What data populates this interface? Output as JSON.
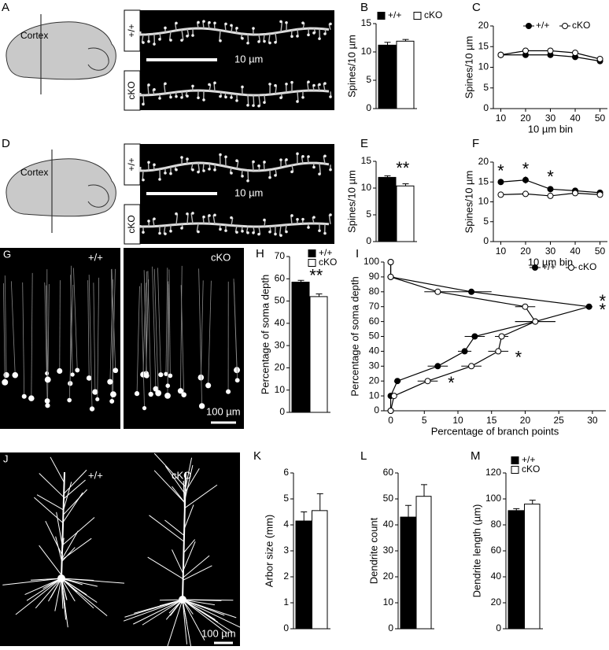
{
  "panels": [
    {
      "label": "A",
      "cortex": "Cortex",
      "top": "+/+",
      "bottom": "cKO",
      "scale": "10 µm"
    },
    {
      "label": "D",
      "cortex": "Cortex",
      "top": "+/+",
      "bottom": "cKO",
      "scale": "10 µm"
    },
    {
      "label": "G",
      "left": "+/+",
      "right": "cKO",
      "scale": "100 µm"
    },
    {
      "label": "J",
      "left": "+/+",
      "right": "cKO",
      "scale": "100 µm"
    }
  ],
  "chart_data": [
    {
      "label": "B",
      "type": "bar",
      "ylabel": "Spines/10 µm",
      "ylim": [
        0,
        15
      ],
      "yticks": [
        0,
        5,
        10,
        15
      ],
      "legend": "top",
      "series": [
        {
          "name": "+/+",
          "color": "#000000",
          "values": [
            11.2
          ],
          "errors": [
            0.5
          ]
        },
        {
          "name": "cKO",
          "color": "#ffffff",
          "values": [
            11.9
          ],
          "errors": [
            0.3
          ]
        }
      ]
    },
    {
      "label": "C",
      "type": "line",
      "xlabel": "10 µm bin",
      "ylabel": "Spines/10 µm",
      "x": [
        10,
        20,
        30,
        40,
        50
      ],
      "xlim": [
        7,
        53
      ],
      "xticks": [
        10,
        20,
        30,
        40,
        50
      ],
      "ylim": [
        0,
        20
      ],
      "yticks": [
        0,
        5,
        10,
        15,
        20
      ],
      "legend": "top",
      "series": [
        {
          "name": "+/+",
          "color": "#000000",
          "values": [
            13,
            13,
            13,
            12.5,
            11.5
          ],
          "errors": [
            0.8,
            0.6,
            0.5,
            0.5,
            0.5
          ]
        },
        {
          "name": "cKO",
          "color": "#ffffff",
          "values": [
            13,
            14,
            14,
            13.5,
            12
          ],
          "errors": [
            0.5,
            0.5,
            0.5,
            0.5,
            0.5
          ]
        }
      ]
    },
    {
      "label": "E",
      "type": "bar",
      "ylabel": "Spines/10 µm",
      "ylim": [
        0,
        15
      ],
      "yticks": [
        0,
        5,
        10,
        15
      ],
      "annotations": [
        {
          "text": "**",
          "y": 13.5
        }
      ],
      "series": [
        {
          "name": "+/+",
          "color": "#000000",
          "values": [
            12
          ],
          "errors": [
            0.3
          ]
        },
        {
          "name": "cKO",
          "color": "#ffffff",
          "values": [
            10.4
          ],
          "errors": [
            0.4
          ]
        }
      ]
    },
    {
      "label": "F",
      "type": "line",
      "xlabel": "10 µm bin",
      "ylabel": "Spines/10 µm",
      "x": [
        10,
        20,
        30,
        40,
        50
      ],
      "xlim": [
        7,
        53
      ],
      "xticks": [
        10,
        20,
        30,
        40,
        50
      ],
      "ylim": [
        0,
        20
      ],
      "yticks": [
        0,
        5,
        10,
        15,
        20
      ],
      "annotations": [
        {
          "text": "*",
          "x": 10,
          "y": 17.5
        },
        {
          "text": "*",
          "x": 20,
          "y": 18
        },
        {
          "text": "*",
          "x": 30,
          "y": 16
        }
      ],
      "series": [
        {
          "name": "+/+",
          "color": "#000000",
          "values": [
            15,
            15.5,
            13.2,
            12.8,
            12.3
          ],
          "errors": [
            0.7,
            0.9,
            0.4,
            0.4,
            0.4
          ]
        },
        {
          "name": "cKO",
          "color": "#ffffff",
          "values": [
            11.8,
            12,
            11.5,
            12.2,
            11.8
          ],
          "errors": [
            0.3,
            0.3,
            0.3,
            0.3,
            0.3
          ]
        }
      ]
    },
    {
      "label": "H",
      "type": "bar",
      "ylabel": "Percentage of soma depth",
      "ylim": [
        0,
        70
      ],
      "yticks": [
        0,
        10,
        20,
        30,
        40,
        50,
        60,
        70
      ],
      "legend": "right",
      "annotations": [
        {
          "text": "**",
          "y": 61
        }
      ],
      "series": [
        {
          "name": "+/+",
          "color": "#000000",
          "values": [
            58.5
          ],
          "errors": [
            0.8
          ]
        },
        {
          "name": "cKO",
          "color": "#ffffff",
          "values": [
            52
          ],
          "errors": [
            1.2
          ]
        }
      ]
    },
    {
      "label": "I",
      "type": "line",
      "orientation": "horizontal",
      "xlabel": "Percentage of branch points",
      "ylabel": "Percentage of soma depth",
      "y": [
        0,
        10,
        20,
        30,
        40,
        50,
        60,
        70,
        80,
        90,
        100
      ],
      "xlim": [
        -1,
        32
      ],
      "xticks": [
        0,
        5,
        10,
        15,
        20,
        25,
        30
      ],
      "ylim": [
        0,
        100
      ],
      "yticks": [
        0,
        10,
        20,
        30,
        40,
        50,
        60,
        70,
        80,
        90,
        100
      ],
      "legend": "top",
      "annotations": [
        {
          "text": "*",
          "x": 31.5,
          "y": 73
        },
        {
          "text": "*",
          "x": 31.5,
          "y": 67
        },
        {
          "text": "*",
          "x": 19,
          "y": 35
        },
        {
          "text": "*",
          "x": 9,
          "y": 18
        }
      ],
      "series": [
        {
          "name": "+/+",
          "color": "#000000",
          "values": [
            0,
            0,
            1,
            7,
            11,
            12.5,
            21.5,
            29.5,
            12,
            0,
            0
          ],
          "errors": [
            0,
            0.3,
            0.5,
            1.5,
            1,
            1.5,
            3,
            0.5,
            3,
            0.5,
            0
          ]
        },
        {
          "name": "cKO",
          "color": "#ffffff",
          "values": [
            0,
            0.5,
            5.5,
            12,
            16,
            16.5,
            21.5,
            20,
            7,
            0,
            0
          ],
          "errors": [
            0,
            0.3,
            1.5,
            1.5,
            1.5,
            1,
            3,
            1.5,
            2,
            0,
            0
          ]
        }
      ]
    },
    {
      "label": "K",
      "type": "bar",
      "ylabel": "Arbor size (mm)",
      "ylim": [
        0,
        6
      ],
      "yticks": [
        0,
        1,
        2,
        3,
        4,
        5,
        6
      ],
      "series": [
        {
          "name": "+/+",
          "color": "#000000",
          "values": [
            4.15
          ],
          "errors": [
            0.35
          ]
        },
        {
          "name": "cKO",
          "color": "#ffffff",
          "values": [
            4.55
          ],
          "errors": [
            0.65
          ]
        }
      ]
    },
    {
      "label": "L",
      "type": "bar",
      "ylabel": "Dendrite count",
      "ylim": [
        0,
        60
      ],
      "yticks": [
        0,
        10,
        20,
        30,
        40,
        50,
        60
      ],
      "series": [
        {
          "name": "+/+",
          "color": "#000000",
          "values": [
            43
          ],
          "errors": [
            4.5
          ]
        },
        {
          "name": "cKO",
          "color": "#ffffff",
          "values": [
            51
          ],
          "errors": [
            4.5
          ]
        }
      ]
    },
    {
      "label": "M",
      "type": "bar",
      "ylabel": "Dendrite length (µm)",
      "ylim": [
        0,
        120
      ],
      "yticks": [
        0,
        20,
        40,
        60,
        80,
        100,
        120
      ],
      "legend": "right",
      "series": [
        {
          "name": "+/+",
          "color": "#000000",
          "values": [
            91
          ],
          "errors": [
            1.5
          ]
        },
        {
          "name": "cKO",
          "color": "#ffffff",
          "values": [
            96
          ],
          "errors": [
            3
          ]
        }
      ]
    }
  ]
}
